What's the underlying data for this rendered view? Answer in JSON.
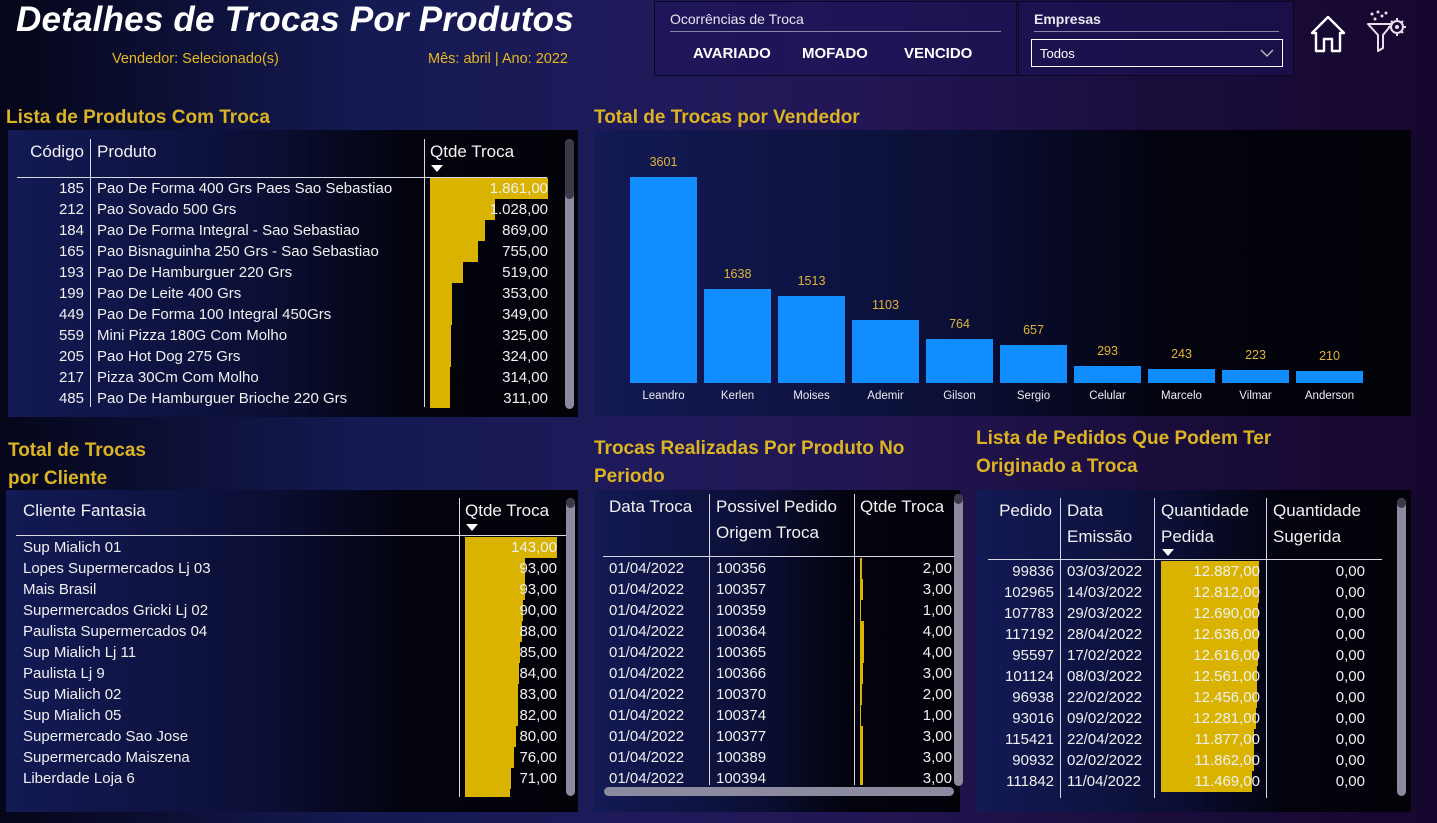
{
  "header": {
    "title": "Detalhes de Trocas Por Produtos",
    "vendedor": "Vendedor: Selecionado(s)",
    "periodo": "Mês: abril | Ano: 2022"
  },
  "ocorrencias": {
    "title": "Ocorrências de Troca",
    "options": [
      "AVARIADO",
      "MOFADO",
      "VENCIDO"
    ]
  },
  "empresas": {
    "title": "Empresas",
    "selected": "Todos"
  },
  "nav": {
    "home_icon": "home-icon",
    "filter_icon": "filter-settings-icon"
  },
  "produtos": {
    "title": "Lista de Produtos Com Troca",
    "headers": [
      "Código",
      "Produto",
      "Qtde Troca"
    ],
    "rows": [
      {
        "codigo": "185",
        "produto": "Pao De Forma 400 Grs Paes Sao Sebastiao",
        "qtde": "1.861,00",
        "v": 1861
      },
      {
        "codigo": "212",
        "produto": "Pao Sovado 500 Grs",
        "qtde": "1.028,00",
        "v": 1028
      },
      {
        "codigo": "184",
        "produto": "Pao De Forma Integral - Sao Sebastiao",
        "qtde": "869,00",
        "v": 869
      },
      {
        "codigo": "165",
        "produto": "Pao Bisnaguinha 250 Grs - Sao Sebastiao",
        "qtde": "755,00",
        "v": 755
      },
      {
        "codigo": "193",
        "produto": "Pao De Hamburguer 220 Grs",
        "qtde": "519,00",
        "v": 519
      },
      {
        "codigo": "199",
        "produto": "Pao De Leite 400 Grs",
        "qtde": "353,00",
        "v": 353
      },
      {
        "codigo": "449",
        "produto": "Pao De Forma 100 Integral 450Grs",
        "qtde": "349,00",
        "v": 349
      },
      {
        "codigo": "559",
        "produto": "Mini Pizza 180G Com Molho",
        "qtde": "325,00",
        "v": 325
      },
      {
        "codigo": "205",
        "produto": "Pao Hot Dog 275 Grs",
        "qtde": "324,00",
        "v": 324
      },
      {
        "codigo": "217",
        "produto": "Pizza 30Cm Com Molho",
        "qtde": "314,00",
        "v": 314
      },
      {
        "codigo": "485",
        "produto": "Pao De Hamburguer Brioche 220 Grs",
        "qtde": "311,00",
        "v": 311
      }
    ]
  },
  "vendedores": {
    "title": "Total de Trocas por Vendedor"
  },
  "chart_data": {
    "type": "bar",
    "title": "Total de Trocas por Vendedor",
    "categories": [
      "Leandro",
      "Kerlen",
      "Moises",
      "Ademir",
      "Gilson",
      "Sergio",
      "Celular",
      "Marcelo",
      "Vilmar",
      "Anderson"
    ],
    "values": [
      3601,
      1638,
      1513,
      1103,
      764,
      657,
      293,
      243,
      223,
      210
    ],
    "xlabel": "",
    "ylabel": "",
    "ylim": [
      0,
      3601
    ],
    "grid": false,
    "legend": "none",
    "data_labels": true,
    "color": "#118dff"
  },
  "clientes": {
    "title_line1": "Total de Trocas",
    "title_line2": "por Cliente",
    "headers": [
      "Cliente Fantasia",
      "Qtde Troca"
    ],
    "rows": [
      {
        "cliente": "Sup Mialich 01",
        "qtde": "143,00",
        "v": 143
      },
      {
        "cliente": "Lopes Supermercados Lj 03",
        "qtde": "93,00",
        "v": 93
      },
      {
        "cliente": "Mais Brasil",
        "qtde": "93,00",
        "v": 93
      },
      {
        "cliente": "Supermercados Gricki Lj 02",
        "qtde": "90,00",
        "v": 90
      },
      {
        "cliente": "Paulista Supermercados 04",
        "qtde": "88,00",
        "v": 88
      },
      {
        "cliente": "Sup Mialich Lj 11",
        "qtde": "85,00",
        "v": 85
      },
      {
        "cliente": "Paulista Lj 9",
        "qtde": "84,00",
        "v": 84
      },
      {
        "cliente": "Sup Mialich 02",
        "qtde": "83,00",
        "v": 83
      },
      {
        "cliente": "Sup Mialich 05",
        "qtde": "82,00",
        "v": 82
      },
      {
        "cliente": "Supermercado Sao Jose",
        "qtde": "80,00",
        "v": 80
      },
      {
        "cliente": "Supermercado Maiszena",
        "qtde": "76,00",
        "v": 76
      },
      {
        "cliente": "Liberdade Loja 6",
        "qtde": "71,00",
        "v": 71
      }
    ]
  },
  "trocas": {
    "title_line1": "Trocas Realizadas Por Produto No",
    "title_line2": "Periodo",
    "headers": [
      "Data Troca",
      "Possivel Pedido",
      "Origem Troca",
      "Qtde Troca"
    ],
    "rows": [
      {
        "data": "01/04/2022",
        "pedido": "100356",
        "qtde": "2,00",
        "v": 2
      },
      {
        "data": "01/04/2022",
        "pedido": "100357",
        "qtde": "3,00",
        "v": 3
      },
      {
        "data": "01/04/2022",
        "pedido": "100359",
        "qtde": "1,00",
        "v": 1
      },
      {
        "data": "01/04/2022",
        "pedido": "100364",
        "qtde": "4,00",
        "v": 4
      },
      {
        "data": "01/04/2022",
        "pedido": "100365",
        "qtde": "4,00",
        "v": 4
      },
      {
        "data": "01/04/2022",
        "pedido": "100366",
        "qtde": "3,00",
        "v": 3
      },
      {
        "data": "01/04/2022",
        "pedido": "100370",
        "qtde": "2,00",
        "v": 2
      },
      {
        "data": "01/04/2022",
        "pedido": "100374",
        "qtde": "1,00",
        "v": 1
      },
      {
        "data": "01/04/2022",
        "pedido": "100377",
        "qtde": "3,00",
        "v": 3
      },
      {
        "data": "01/04/2022",
        "pedido": "100389",
        "qtde": "3,00",
        "v": 3
      },
      {
        "data": "01/04/2022",
        "pedido": "100394",
        "qtde": "3,00",
        "v": 3
      }
    ]
  },
  "pedidos": {
    "title_line1": "Lista de Pedidos Que Podem Ter",
    "title_line2": "Originado a Troca",
    "headers": [
      "Pedido",
      "Data",
      "Emissão",
      "Quantidade",
      "Pedida",
      "Quantidade",
      "Sugerida"
    ],
    "rows": [
      {
        "pedido": "99836",
        "data": "03/03/2022",
        "pedida": "12.887,00",
        "v": 12887,
        "sugerida": "0,00"
      },
      {
        "pedido": "102965",
        "data": "14/03/2022",
        "pedida": "12.812,00",
        "v": 12812,
        "sugerida": "0,00"
      },
      {
        "pedido": "107783",
        "data": "29/03/2022",
        "pedida": "12.690,00",
        "v": 12690,
        "sugerida": "0,00"
      },
      {
        "pedido": "117192",
        "data": "28/04/2022",
        "pedida": "12.636,00",
        "v": 12636,
        "sugerida": "0,00"
      },
      {
        "pedido": "95597",
        "data": "17/02/2022",
        "pedida": "12.616,00",
        "v": 12616,
        "sugerida": "0,00"
      },
      {
        "pedido": "101124",
        "data": "08/03/2022",
        "pedida": "12.561,00",
        "v": 12561,
        "sugerida": "0,00"
      },
      {
        "pedido": "96938",
        "data": "22/02/2022",
        "pedida": "12.456,00",
        "v": 12456,
        "sugerida": "0,00"
      },
      {
        "pedido": "93016",
        "data": "09/02/2022",
        "pedida": "12.281,00",
        "v": 12281,
        "sugerida": "0,00"
      },
      {
        "pedido": "115421",
        "data": "22/04/2022",
        "pedida": "11.877,00",
        "v": 11877,
        "sugerida": "0,00"
      },
      {
        "pedido": "90932",
        "data": "02/02/2022",
        "pedida": "11.862,00",
        "v": 11862,
        "sugerida": "0,00"
      },
      {
        "pedido": "111842",
        "data": "11/04/2022",
        "pedida": "11.469,00",
        "v": 11469,
        "sugerida": "0,00"
      }
    ]
  }
}
